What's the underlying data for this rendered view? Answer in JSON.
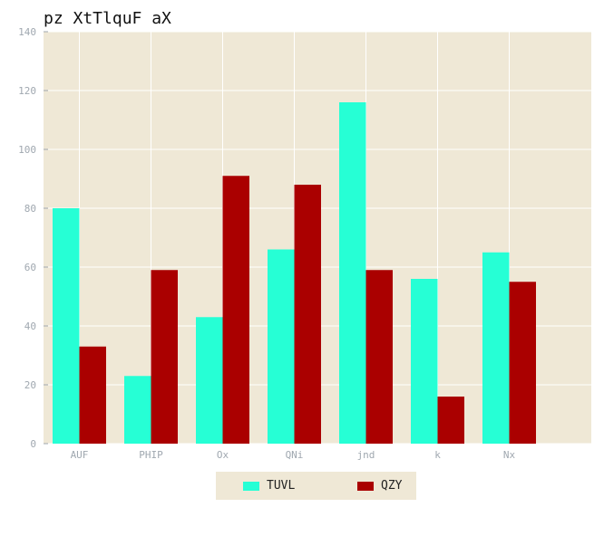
{
  "chart_data": {
    "type": "bar",
    "title": "pz XtTlquF aX",
    "xlabel": "",
    "ylabel": "",
    "categories": [
      "AUF",
      "PHIP",
      "Ox",
      "QNi",
      "jnd",
      "k",
      "Nx"
    ],
    "series": [
      {
        "name": "TUVL",
        "color": "#26ffd5",
        "values": [
          80,
          23,
          43,
          66,
          116,
          56,
          65
        ]
      },
      {
        "name": "QZY",
        "color": "#aa0000",
        "values": [
          33,
          59,
          91,
          88,
          59,
          16,
          55
        ]
      }
    ],
    "ylim": [
      0,
      140
    ],
    "yticks": [
      0,
      20,
      40,
      60,
      80,
      100,
      120,
      140
    ],
    "grid": true,
    "legend_position": "bottom-center",
    "background_color": "#efe8d6",
    "grid_color": "#ffffff"
  }
}
